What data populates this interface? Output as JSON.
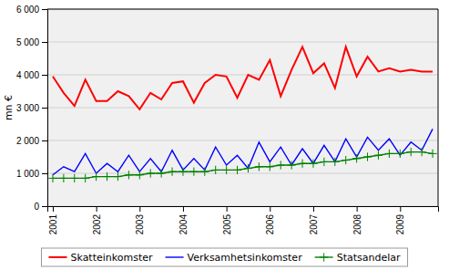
{
  "chart_data": {
    "type": "line",
    "categories": [
      "2001",
      null,
      null,
      null,
      "2002",
      null,
      null,
      null,
      "2003",
      null,
      null,
      null,
      "2004",
      null,
      null,
      null,
      "2005",
      null,
      null,
      null,
      "2006",
      null,
      null,
      null,
      "2007",
      null,
      null,
      null,
      "2008",
      null,
      null,
      null,
      "2009",
      null,
      null,
      null
    ],
    "ylabel": "mn €",
    "ylim": [
      0,
      6000
    ],
    "yticks": [
      0,
      {
        "value": 1000,
        "label": "1 000"
      },
      {
        "value": 2000,
        "label": "2 000"
      },
      {
        "value": 3000,
        "label": "3 000"
      },
      {
        "value": 4000,
        "label": "4 000"
      },
      {
        "value": 5000,
        "label": "5 000"
      },
      {
        "value": 6000,
        "label": "6 000"
      }
    ],
    "grid": true,
    "legend": "bottom",
    "series": [
      {
        "name": "Skatteinkomster",
        "color": "#FF0000",
        "values": [
          3950,
          3450,
          3050,
          3850,
          3200,
          3200,
          3500,
          3350,
          2950,
          3450,
          3250,
          3750,
          3800,
          3150,
          3750,
          4000,
          3950,
          3300,
          4000,
          3850,
          4450,
          3350,
          4150,
          4850,
          4050,
          4350,
          3600,
          4850,
          3950,
          4550,
          4100,
          4200,
          4100,
          4150,
          4100,
          4100
        ]
      },
      {
        "name": "Verksamhetsinkomster",
        "color": "#0000FF",
        "values": [
          950,
          1200,
          1050,
          1600,
          1000,
          1300,
          1050,
          1550,
          1050,
          1450,
          1050,
          1700,
          1100,
          1450,
          1100,
          1800,
          1250,
          1550,
          1150,
          1950,
          1350,
          1800,
          1250,
          1750,
          1300,
          1850,
          1350,
          2050,
          1500,
          2100,
          1700,
          2050,
          1550,
          1950,
          1700,
          2350
        ]
      },
      {
        "name": "Statsandelar",
        "color": "#008000",
        "marker": "plus",
        "values": [
          850,
          850,
          850,
          850,
          900,
          900,
          900,
          950,
          950,
          1000,
          1000,
          1050,
          1050,
          1050,
          1050,
          1100,
          1100,
          1100,
          1150,
          1200,
          1200,
          1250,
          1250,
          1300,
          1300,
          1350,
          1350,
          1400,
          1450,
          1500,
          1550,
          1600,
          1600,
          1650,
          1650,
          1600
        ]
      }
    ]
  }
}
